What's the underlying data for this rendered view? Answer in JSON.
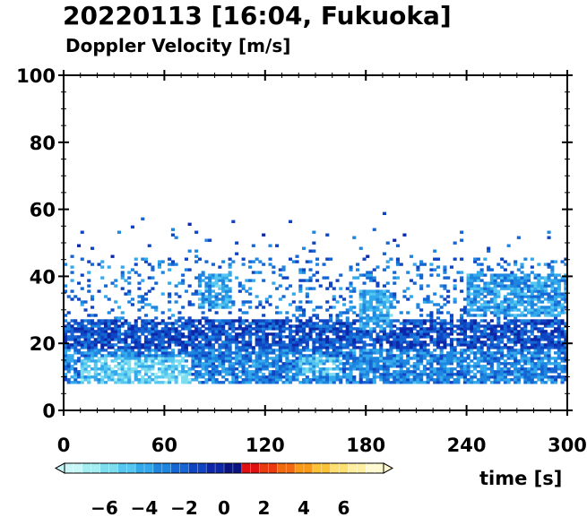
{
  "title": "20220113 [16:04, Fukuoka]",
  "subtitle": "Doppler Velocity [m/s]",
  "chart_data": {
    "type": "heatmap",
    "title": "20220113 [16:04, Fukuoka]",
    "subtitle": "Doppler Velocity [m/s]",
    "xlabel": "time [s]",
    "ylabel": "",
    "xlim": [
      0,
      300
    ],
    "ylim": [
      0,
      100
    ],
    "x_ticks": [
      "0",
      "60",
      "120",
      "180",
      "240",
      "300"
    ],
    "y_ticks": [
      "0",
      "20",
      "40",
      "60",
      "80",
      "100"
    ],
    "x_tick_values": [
      0,
      60,
      120,
      180,
      240,
      300
    ],
    "y_tick_values": [
      0,
      20,
      40,
      60,
      80,
      100
    ],
    "colorbar": {
      "ticks": [
        "−6",
        "−4",
        "−2",
        "0",
        "2",
        "4",
        "6"
      ],
      "tick_values": [
        -6,
        -4,
        -2,
        0,
        2,
        4,
        6
      ],
      "range": [
        -8,
        8
      ],
      "colors": [
        "#c9f7f7",
        "#a4eef2",
        "#7edcef",
        "#55c6ef",
        "#33a8ea",
        "#1f86e0",
        "#1565d3",
        "#0f45c2",
        "#0c28a8",
        "#0a1480",
        "#e01010",
        "#ea3a10",
        "#f26a10",
        "#f89a18",
        "#fbc238",
        "#fde070",
        "#fef0a0",
        "#fffad0"
      ]
    },
    "data_extent": {
      "y_min": 8,
      "y_max": 60
    },
    "bands": [
      {
        "x": [
          0,
          300
        ],
        "y": [
          8,
          27
        ],
        "level": -1.5
      },
      {
        "x": [
          0,
          300
        ],
        "y": [
          8,
          18
        ],
        "level": -3
      },
      {
        "x": [
          10,
          75
        ],
        "y": [
          8,
          16
        ],
        "level": -5
      },
      {
        "x": [
          140,
          165
        ],
        "y": [
          10,
          16
        ],
        "level": -4.5
      },
      {
        "x": [
          80,
          100
        ],
        "y": [
          30,
          40
        ],
        "level": -4
      },
      {
        "x": [
          175,
          195
        ],
        "y": [
          24,
          36
        ],
        "level": -4
      },
      {
        "x": [
          240,
          300
        ],
        "y": [
          28,
          40
        ],
        "level": -3.5
      }
    ]
  }
}
